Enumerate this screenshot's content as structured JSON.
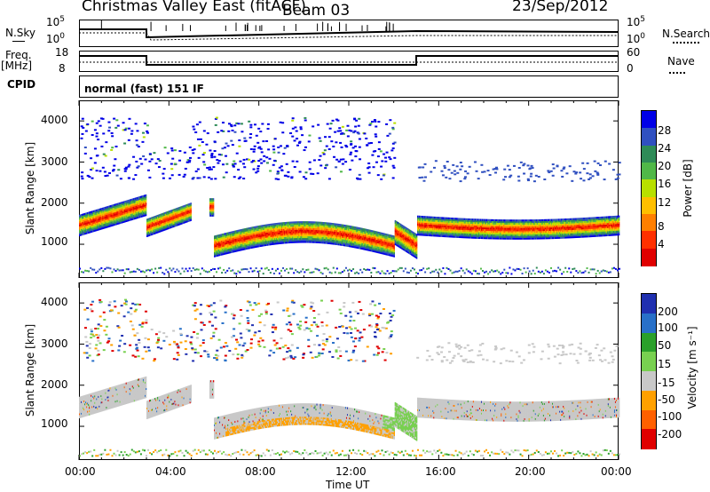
{
  "header": {
    "title": "Christmas Valley East (fitACF)",
    "beam": "Beam 03",
    "date": "23/Sep/2012"
  },
  "info_panels": {
    "nsky_label": "N.Sky",
    "nsky_ticks": [
      "10^5",
      "10^0"
    ],
    "nsearch_label": "N.Search",
    "nsearch_ticks": [
      "10^5",
      "10^0"
    ],
    "freq_label": "Freq.",
    "freq_unit": "[MHz]",
    "freq_ticks": [
      "18",
      "8"
    ],
    "nave_label": "Nave",
    "nave_ticks": [
      "60",
      "0"
    ],
    "cpid_label": "CPID",
    "cpid_text": "normal (fast) 151 IF"
  },
  "chart_data": [
    {
      "type": "heatmap",
      "name": "power",
      "ylabel": "Slant Range [km]",
      "yticks": [
        "4000",
        "3000",
        "2000",
        "1000"
      ],
      "ylim": [
        180,
        4500
      ],
      "xlim": [
        0,
        24
      ],
      "colorbar_label": "Power [dB]",
      "colorbar_ticks": [
        "28",
        "24",
        "20",
        "16",
        "12",
        "8",
        "4"
      ],
      "colorbar_colors": [
        "#0000e6",
        "#3050c0",
        "#2e8b57",
        "#50b848",
        "#b8e000",
        "#ffbf00",
        "#ff7f00",
        "#ff3000",
        "#e00000"
      ],
      "features": [
        {
          "time": [
            0,
            3
          ],
          "range": [
            1300,
            2200
          ],
          "level_db": 20
        },
        {
          "time": [
            3,
            5
          ],
          "range": [
            1200,
            1800
          ],
          "level_db": 18
        },
        {
          "time": [
            6,
            14
          ],
          "range": [
            800,
            1400
          ],
          "level_db": 24
        },
        {
          "time": [
            14,
            15
          ],
          "range": [
            900,
            1800
          ],
          "level_db": 22
        },
        {
          "time": [
            15,
            24
          ],
          "range": [
            1200,
            1700
          ],
          "level_db": 26
        }
      ]
    },
    {
      "type": "heatmap",
      "name": "velocity",
      "ylabel": "Slant Range [km]",
      "yticks": [
        "4000",
        "3000",
        "2000",
        "1000"
      ],
      "ylim": [
        180,
        4500
      ],
      "xlim": [
        0,
        24
      ],
      "colorbar_label": "Velocity [m s⁻¹]",
      "colorbar_ticks": [
        "200",
        "100",
        "50",
        "15",
        "-15",
        "-50",
        "-100",
        "-200"
      ],
      "colorbar_colors": [
        "#2030b0",
        "#2870c8",
        "#2aa02a",
        "#78d050",
        "#c8c8c8",
        "#ffa000",
        "#ff6000",
        "#e00000"
      ],
      "x_ticks": [
        "00:00",
        "04:00",
        "08:00",
        "12:00",
        "16:00",
        "20:00",
        "00:00"
      ],
      "xlabel": "Time UT"
    }
  ]
}
